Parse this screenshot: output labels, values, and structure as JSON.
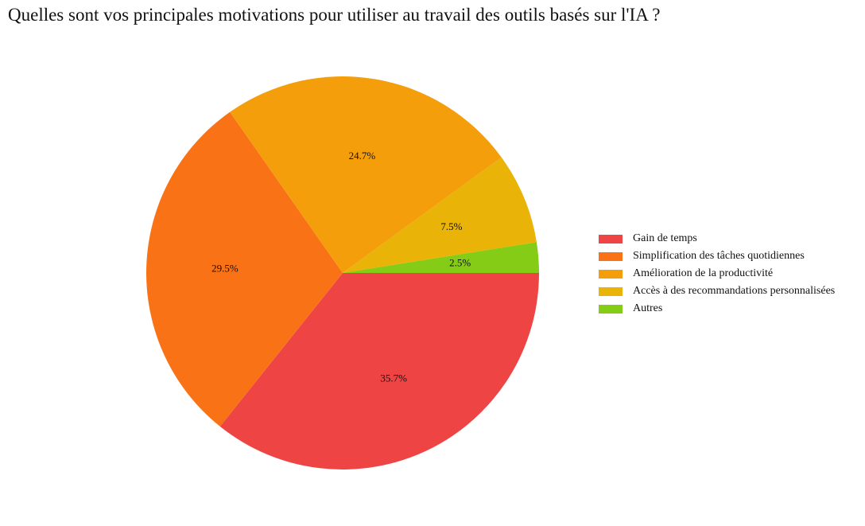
{
  "chart_data": {
    "type": "pie",
    "title": "Quelles sont vos principales motivations pour utiliser au travail des outils basés sur l'IA ?",
    "categories": [
      "Gain de temps",
      "Simplification des tâches quotidiennes",
      "Amélioration de la productivité",
      "Accès à des recommandations personnalisées",
      "Autres"
    ],
    "values": [
      35.7,
      29.5,
      24.7,
      7.5,
      2.5
    ],
    "labels": [
      "35.7%",
      "29.5%",
      "24.7%",
      "7.5%",
      "2.5%"
    ],
    "colors": [
      "#ef4444",
      "#f97316",
      "#f59e0b",
      "#eab308",
      "#84cc16"
    ],
    "legend_position": "right",
    "start_angle": 0,
    "direction": "clockwise"
  }
}
